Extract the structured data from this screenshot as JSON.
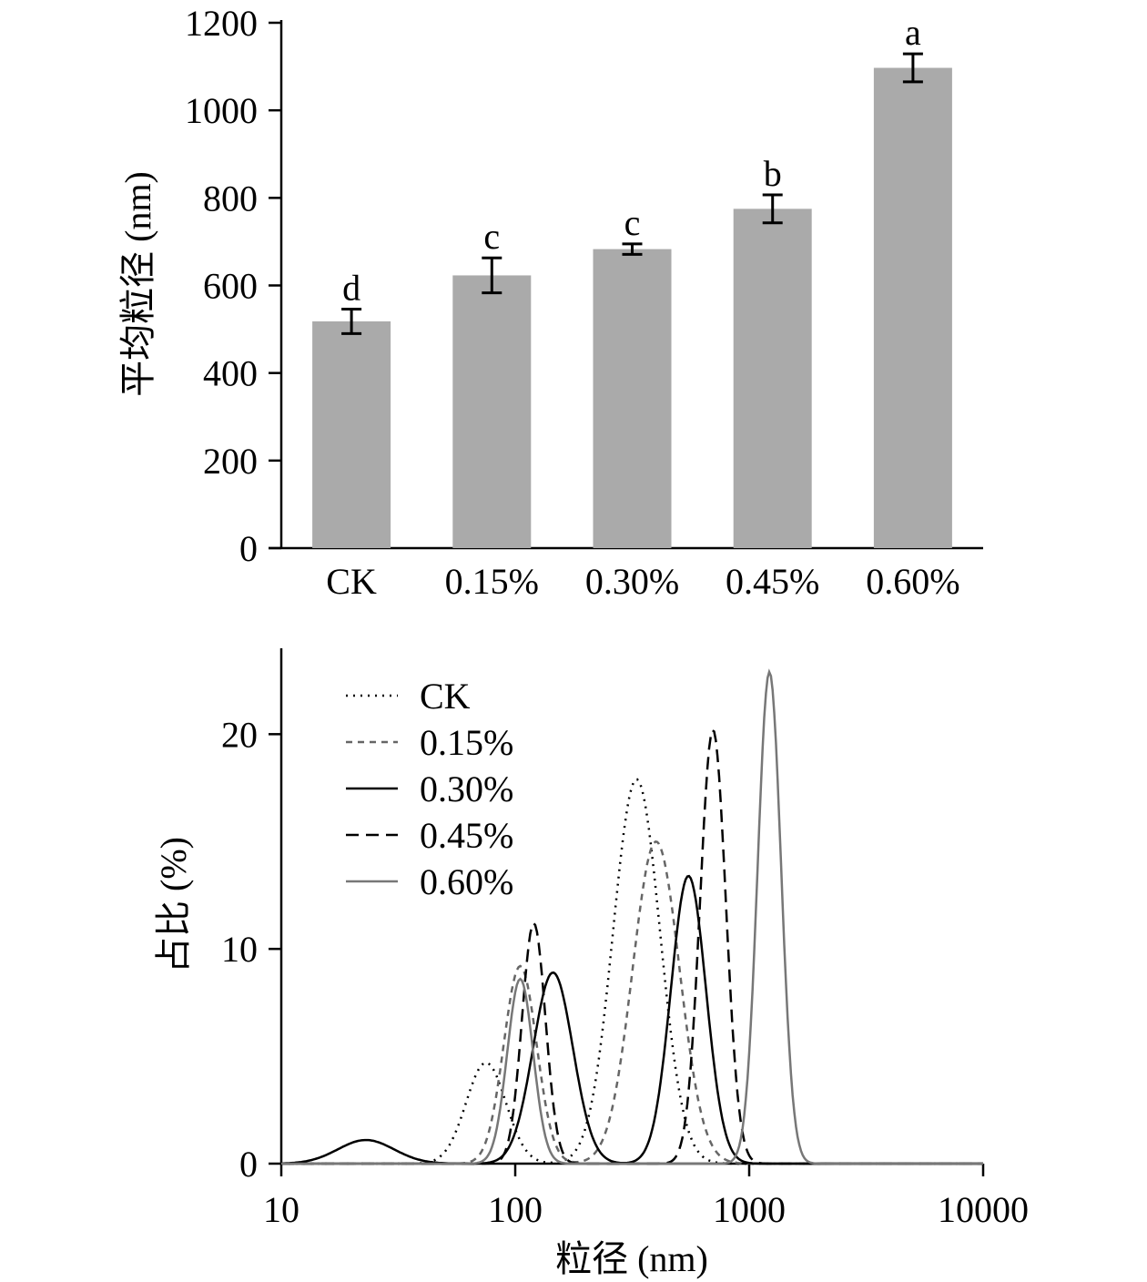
{
  "chart_data": [
    {
      "type": "bar",
      "ylabel": "平均粒径 (nm)",
      "xlabel": "",
      "ylim": [
        0,
        1200
      ],
      "yticks": [
        "0",
        "200",
        "400",
        "600",
        "800",
        "1000",
        "1200"
      ],
      "categories": [
        "CK",
        "0.15%",
        "0.30%",
        "0.45%",
        "0.60%"
      ],
      "values": [
        518,
        623,
        683,
        775,
        1097
      ],
      "errors": [
        28,
        40,
        12,
        32,
        32
      ],
      "significance": [
        "d",
        "c",
        "c",
        "b",
        "a"
      ],
      "bar_color": "#aaaaaa",
      "grid": false
    },
    {
      "type": "line",
      "xlabel": "粒径 (nm)",
      "ylabel": "占比 (%)",
      "xscale": "log",
      "xlim": [
        10,
        10000
      ],
      "ylim": [
        0,
        24
      ],
      "xticks": [
        "10",
        "100",
        "1000",
        "10000"
      ],
      "yticks": [
        "0",
        "10",
        "20"
      ],
      "legend_position": "top-left",
      "grid": false,
      "series": [
        {
          "name": "CK",
          "style": "dotted",
          "color": "#000000",
          "peaks": [
            [
              75,
              4.7,
              0.085
            ],
            [
              330,
              17.9,
              0.1
            ]
          ]
        },
        {
          "name": "0.15%",
          "style": "dashed-short",
          "color": "#666666",
          "peaks": [
            [
              105,
              9.2,
              0.07
            ],
            [
              400,
              15.0,
              0.1
            ]
          ]
        },
        {
          "name": "0.30%",
          "style": "solid",
          "color": "#000000",
          "peaks": [
            [
              23,
              1.1,
              0.12
            ],
            [
              145,
              8.9,
              0.085
            ],
            [
              550,
              13.4,
              0.075
            ]
          ]
        },
        {
          "name": "0.45%",
          "style": "dashed",
          "color": "#000000",
          "peaks": [
            [
              120,
              11.2,
              0.05
            ],
            [
              700,
              20.2,
              0.055
            ]
          ]
        },
        {
          "name": "0.60%",
          "style": "solid",
          "color": "#777777",
          "peaks": [
            [
              105,
              8.6,
              0.055
            ],
            [
              1220,
              22.9,
              0.05
            ]
          ]
        }
      ]
    }
  ]
}
